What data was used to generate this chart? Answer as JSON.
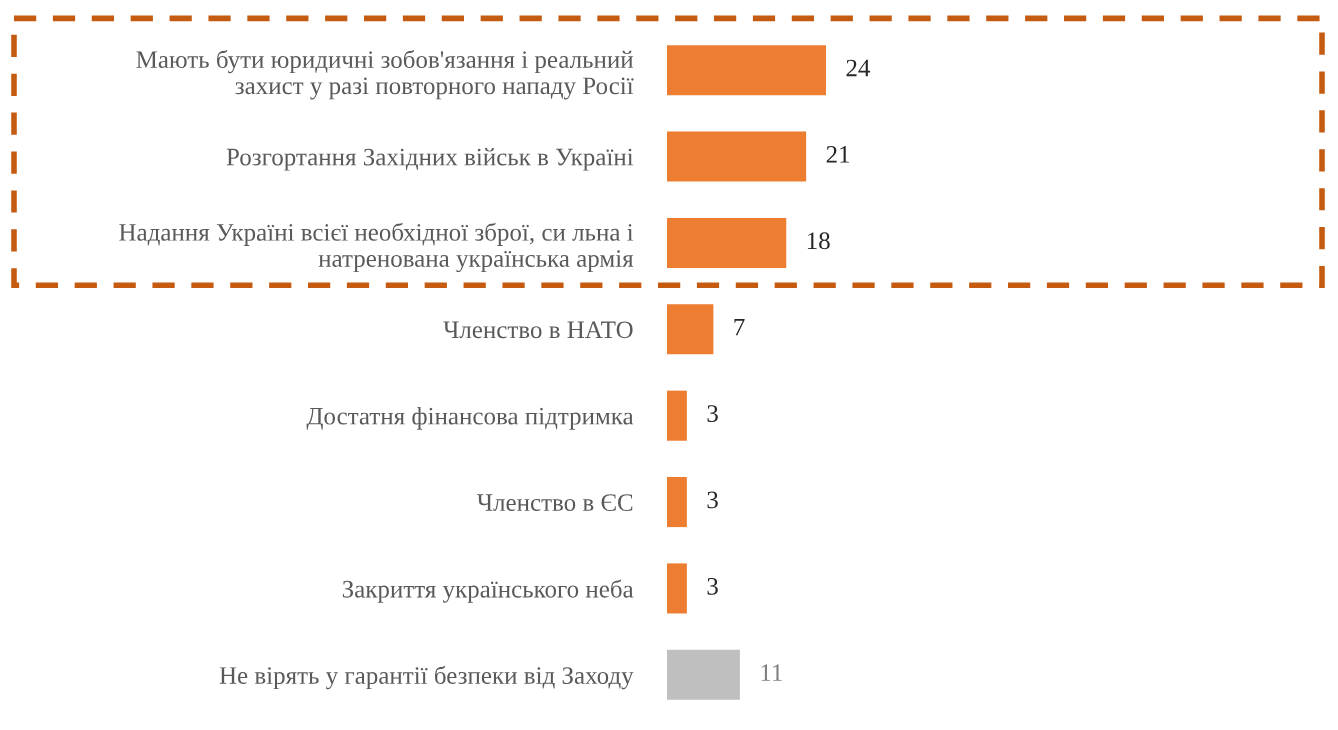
{
  "chart_data": {
    "type": "bar",
    "orientation": "horizontal",
    "categories": [
      "Мають бути юридичні зобов'язання і реальний\nзахист у разі повторного нападу Росії",
      "Розгортання Західних військ в Україні",
      "Надання Україні всієї необхідної зброї, си льна і\nнатренована українська армія",
      "Членство в НАТО",
      "Достатня фінансова підтримка",
      "Членство в ЄС",
      "Закриття українського неба",
      "Не вірять у гарантії безпеки від Заходу"
    ],
    "values": [
      24,
      21,
      18,
      7,
      3,
      3,
      3,
      11
    ],
    "colors": [
      "#ed7d31",
      "#ed7d31",
      "#ed7d31",
      "#ed7d31",
      "#ed7d31",
      "#ed7d31",
      "#ed7d31",
      "#bfbfbf"
    ],
    "data_labels": true
  }
}
